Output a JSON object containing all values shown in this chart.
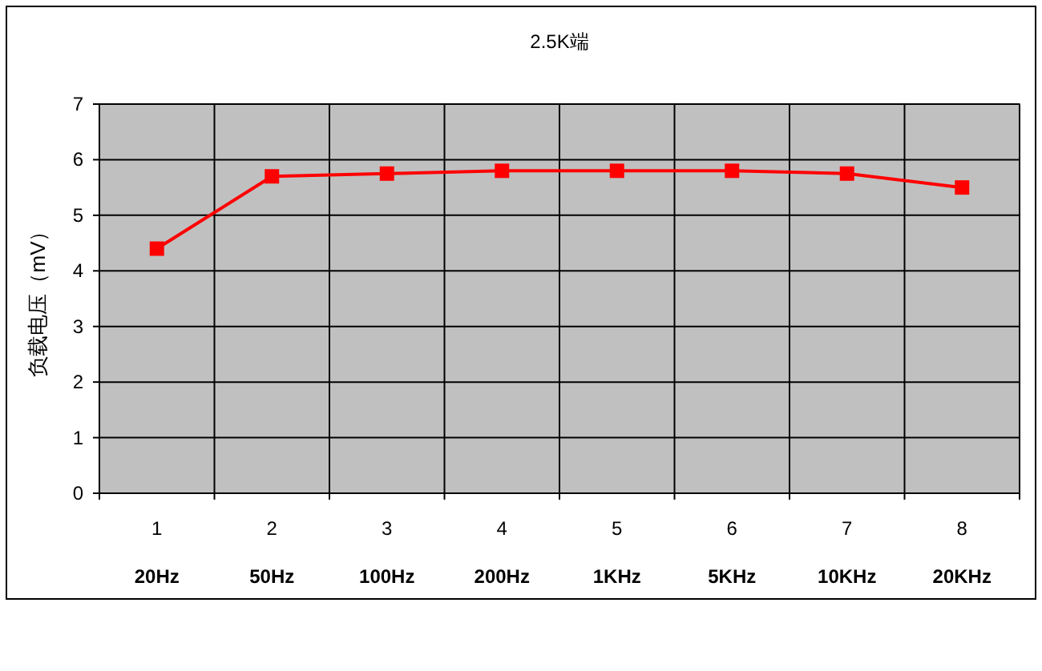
{
  "chart_data": {
    "type": "line",
    "title": "2.5K端",
    "ylabel": "负载电压（mV）",
    "categories": [
      "1",
      "2",
      "3",
      "4",
      "5",
      "6",
      "7",
      "8"
    ],
    "series": [
      {
        "color": "#ff0000",
        "values": [
          4.4,
          5.7,
          5.75,
          5.8,
          5.8,
          5.8,
          5.75,
          5.5
        ]
      }
    ],
    "ylim": [
      0,
      7
    ],
    "yticks": [
      0,
      1,
      2,
      3,
      4,
      5,
      6,
      7
    ],
    "grid": true,
    "marker": "square",
    "line_style": "solid",
    "annotations": [
      "20Hz",
      "50Hz",
      "100Hz",
      "200Hz",
      "1KHz",
      "5KHz",
      "10KHz",
      "20KHz"
    ]
  }
}
